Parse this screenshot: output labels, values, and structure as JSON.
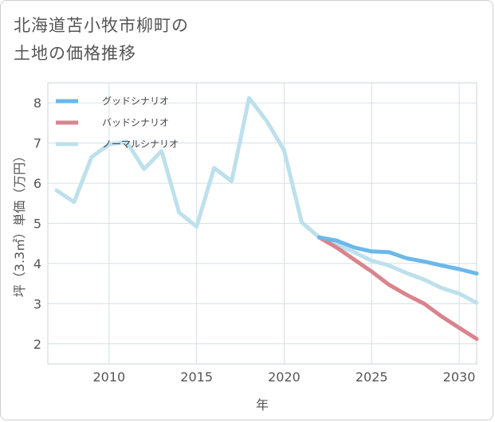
{
  "title_line1": "北海道苫小牧市柳町の",
  "title_line2": "土地の価格推移",
  "chart_data": {
    "type": "line",
    "title": "北海道苫小牧市柳町の土地の価格推移",
    "xlabel": "年",
    "ylabel": "坪（3.3㎡）単価（万円）",
    "xlim": [
      2006.5,
      2031
    ],
    "ylim": [
      1.5,
      8.5
    ],
    "xticks": [
      2010,
      2015,
      2020,
      2025,
      2030
    ],
    "yticks": [
      2,
      3,
      4,
      5,
      6,
      7,
      8
    ],
    "grid": true,
    "legend_position": "top-left",
    "series": [
      {
        "name": "グッドシナリオ",
        "color": "#6bb8ea",
        "x": [
          2022,
          2023,
          2024,
          2025,
          2026,
          2027,
          2028,
          2029,
          2030,
          2031
        ],
        "y": [
          4.65,
          4.57,
          4.4,
          4.3,
          4.28,
          4.13,
          4.05,
          3.95,
          3.86,
          3.75
        ]
      },
      {
        "name": "バッドシナリオ",
        "color": "#d9848c",
        "x": [
          2022,
          2023,
          2024,
          2025,
          2026,
          2027,
          2028,
          2029,
          2030,
          2031
        ],
        "y": [
          4.65,
          4.4,
          4.1,
          3.8,
          3.47,
          3.22,
          3.0,
          2.68,
          2.4,
          2.12
        ]
      },
      {
        "name": "ノーマルシナリオ",
        "color": "#bde0ec",
        "x": [
          2007,
          2008,
          2009,
          2010,
          2011,
          2012,
          2013,
          2014,
          2015,
          2016,
          2017,
          2018,
          2019,
          2020,
          2021,
          2022,
          2023,
          2024,
          2025,
          2026,
          2027,
          2028,
          2029,
          2030,
          2031
        ],
        "y": [
          5.82,
          5.53,
          6.65,
          6.97,
          7.03,
          6.35,
          6.8,
          5.27,
          4.92,
          6.38,
          6.05,
          8.12,
          7.55,
          6.82,
          5.03,
          4.65,
          4.47,
          4.28,
          4.07,
          3.95,
          3.76,
          3.6,
          3.39,
          3.25,
          3.02
        ]
      }
    ]
  }
}
